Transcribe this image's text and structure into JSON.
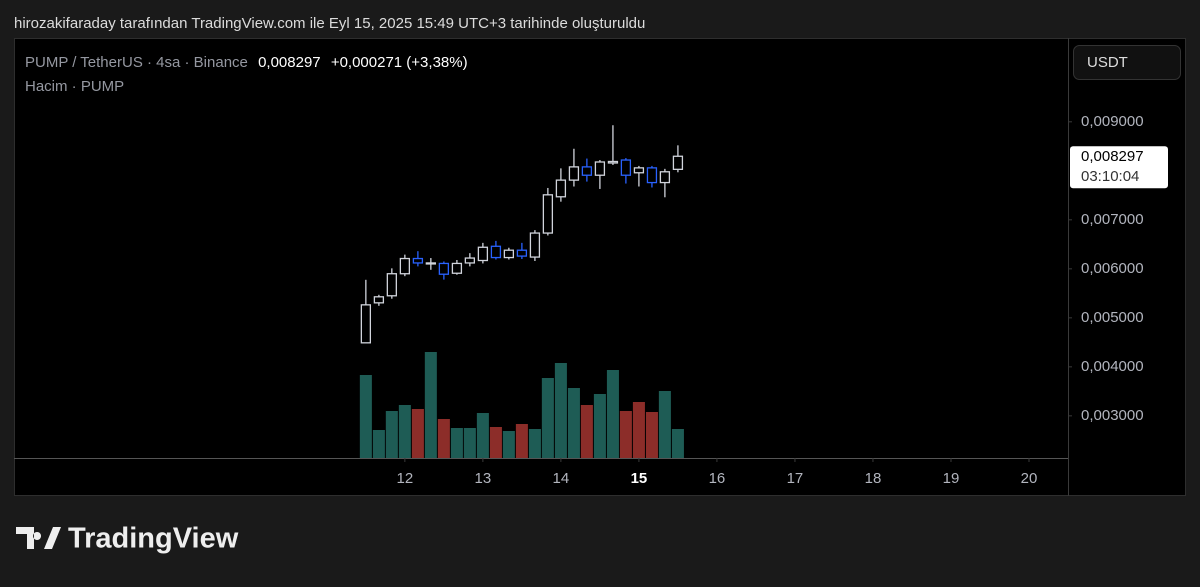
{
  "header": "hirozakifaraday tarafından TradingView.com ile Eyl 15, 2025 15:49 UTC+3 tarihinde oluşturuldu",
  "brand": "TradingView",
  "chart_data": {
    "type": "candlestick",
    "legend": {
      "symbol": "PUMP / TetherUS · 4sa · Binance",
      "price": "0,008297",
      "change": "+0,000271 (+3,38%)",
      "volume": "Hacim · PUMP"
    },
    "currency": "USDT",
    "last_price": {
      "value": 0.008297,
      "label": "0,008297"
    },
    "countdown": "03:10:04",
    "up_color": "#d1d4dc",
    "down_color": "#2962ff",
    "x": [
      11.5,
      11.667,
      11.833,
      12.0,
      12.167,
      12.333,
      12.5,
      12.667,
      12.833,
      13.0,
      13.167,
      13.333,
      13.5,
      13.667,
      13.833,
      14.0,
      14.167,
      14.333,
      14.5,
      14.667,
      14.833,
      15.0,
      15.167,
      15.333,
      15.5
    ],
    "open": [
      0.00449,
      0.005306,
      0.00545,
      0.0059,
      0.00621,
      0.00611,
      0.00611,
      0.00591,
      0.00612,
      0.00617,
      0.00646,
      0.00623,
      0.00638,
      0.00624,
      0.00673,
      0.00747,
      0.00781,
      0.00808,
      0.00791,
      0.00816,
      0.00822,
      0.00796,
      0.00806,
      0.00776,
      0.00803
    ],
    "high": [
      0.005776,
      0.00547,
      0.00601,
      0.00629,
      0.00636,
      0.00622,
      0.00615,
      0.00618,
      0.00632,
      0.00653,
      0.00657,
      0.00643,
      0.00653,
      0.00679,
      0.00765,
      0.00805,
      0.00845,
      0.00825,
      0.00822,
      0.00893,
      0.00826,
      0.0081,
      0.0081,
      0.00804,
      0.00852
    ],
    "low": [
      0.00449,
      0.005245,
      0.00539,
      0.00585,
      0.00605,
      0.00598,
      0.00578,
      0.00588,
      0.00605,
      0.00611,
      0.00619,
      0.00619,
      0.0062,
      0.00616,
      0.00668,
      0.00737,
      0.00768,
      0.00778,
      0.00763,
      0.00812,
      0.00774,
      0.00768,
      0.00766,
      0.00746,
      0.00797
    ],
    "close": [
      0.005265,
      0.005429,
      0.0059,
      0.00621,
      0.00612,
      0.00612,
      0.00589,
      0.00611,
      0.00622,
      0.00644,
      0.00623,
      0.00638,
      0.00626,
      0.00673,
      0.00751,
      0.00781,
      0.00808,
      0.00791,
      0.00818,
      0.00819,
      0.00791,
      0.00806,
      0.00776,
      0.00798,
      0.008297
    ],
    "volume": {
      "values": [
        83,
        28,
        47,
        53,
        49,
        106,
        39,
        30,
        30,
        45,
        31,
        27,
        34,
        29,
        80,
        95,
        70,
        53,
        64,
        88,
        47,
        56,
        46,
        67,
        29
      ],
      "colors": [
        "#1e5c55",
        "#1e5c55",
        "#1e5c55",
        "#1e5c55",
        "#8c2d29",
        "#1e5c55",
        "#8c2d29",
        "#1e5c55",
        "#1e5c55",
        "#1e5c55",
        "#8c2d29",
        "#1e5c55",
        "#8c2d29",
        "#1e5c55",
        "#1e5c55",
        "#1e5c55",
        "#1e5c55",
        "#8c2d29",
        "#1e5c55",
        "#1e5c55",
        "#8c2d29",
        "#8c2d29",
        "#8c2d29",
        "#1e5c55",
        "#1e5c55"
      ]
    },
    "xlim": [
      6.99,
      20.5
    ],
    "xticks": [
      12,
      13,
      14,
      15,
      16,
      17,
      18,
      19,
      20
    ],
    "bold_xtick": 15,
    "ylim": [
      0.00214,
      0.01071
    ],
    "yticks": [
      {
        "value": 0.003,
        "label": "0,003000"
      },
      {
        "value": 0.004,
        "label": "0,004000"
      },
      {
        "value": 0.005,
        "label": "0,005000"
      },
      {
        "value": 0.006,
        "label": "0,006000"
      },
      {
        "value": 0.007,
        "label": "0,007000"
      },
      {
        "value": 0.009,
        "label": "0,009000"
      }
    ]
  }
}
